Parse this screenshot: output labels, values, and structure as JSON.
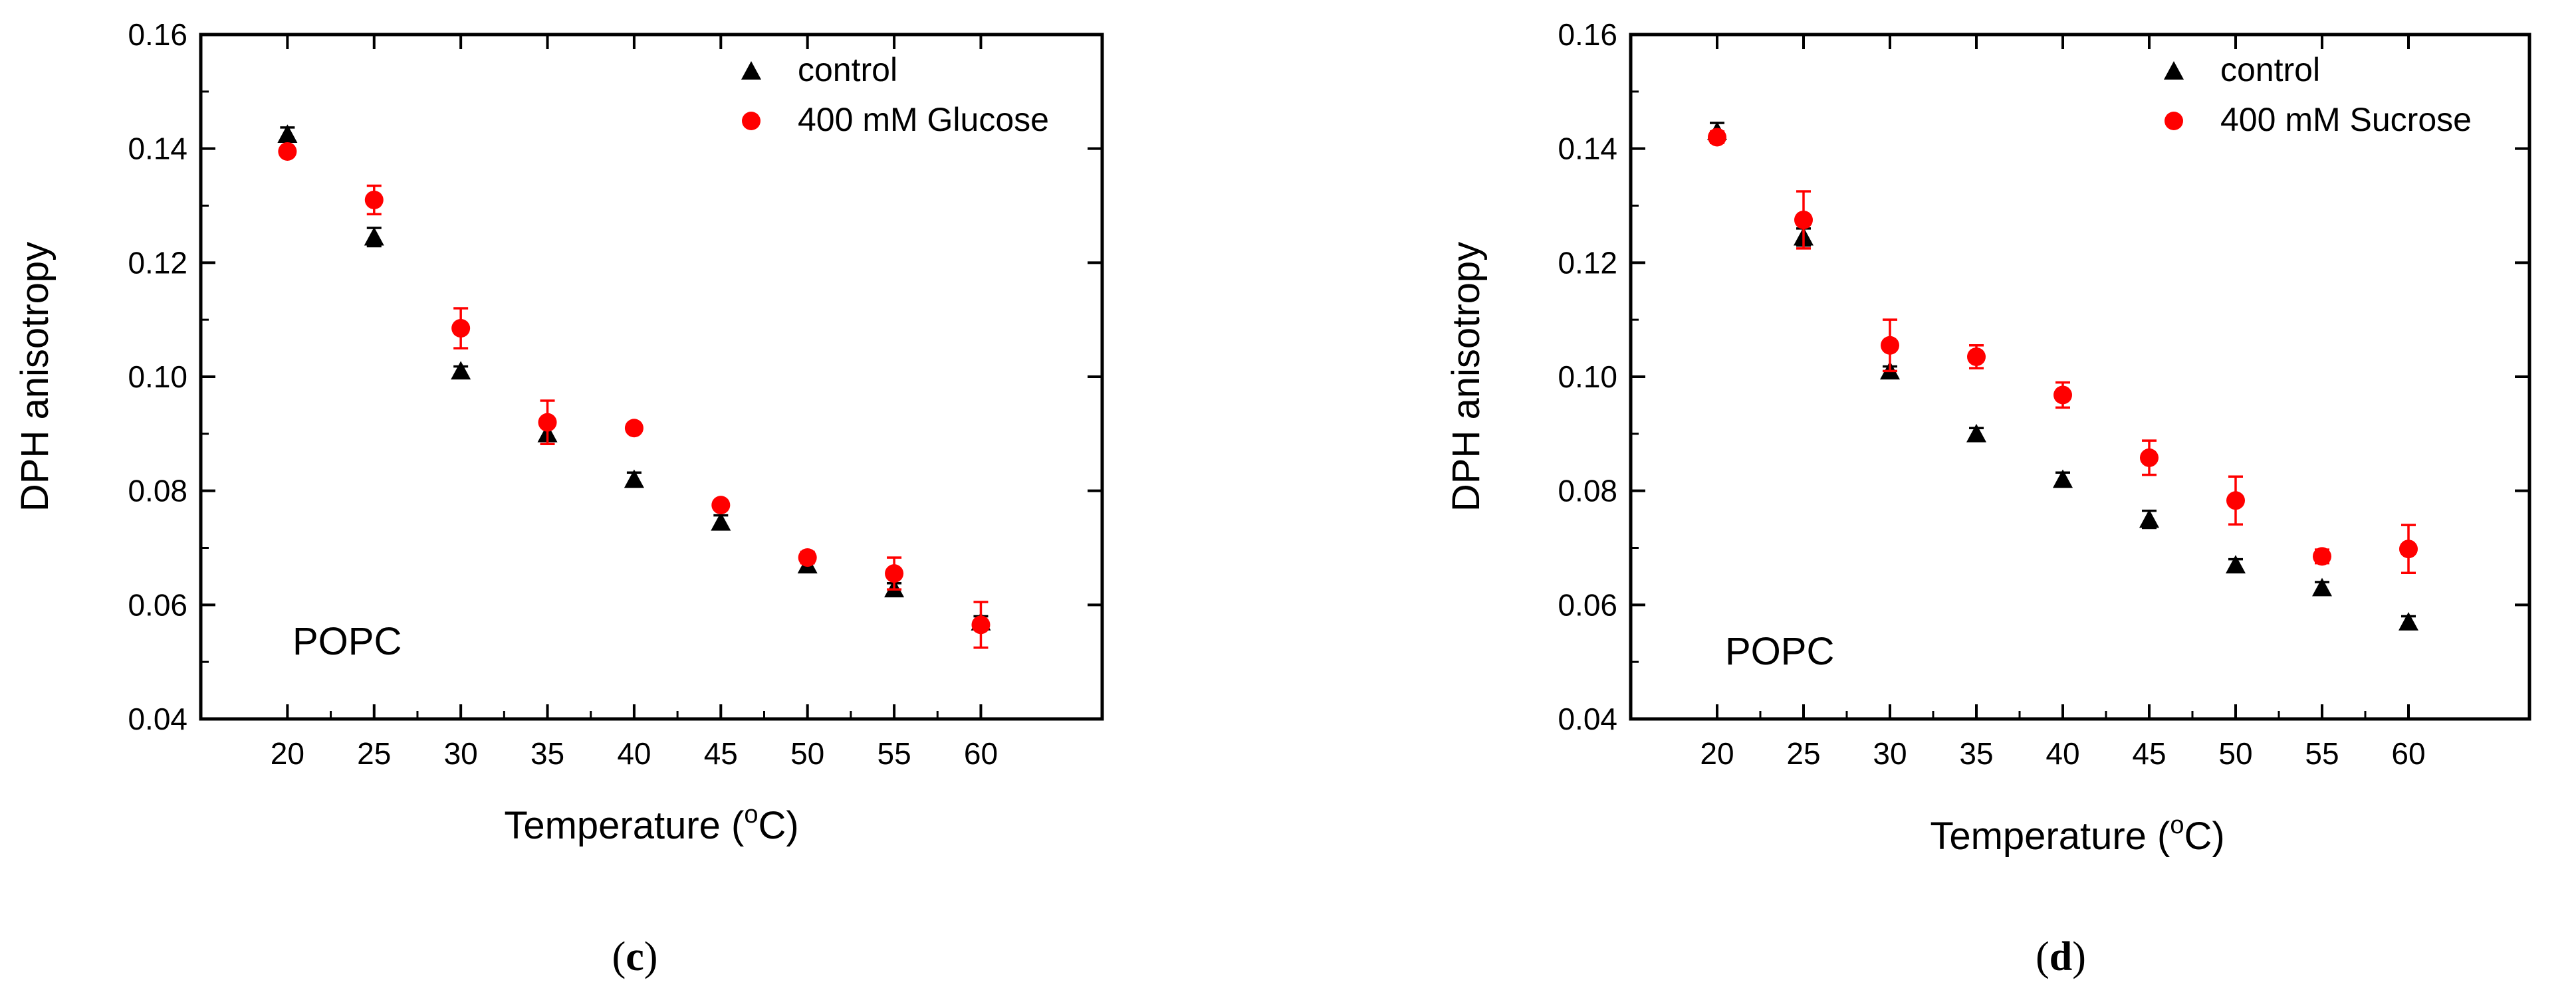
{
  "chart_data": [
    {
      "type": "scatter",
      "panel": "(c)",
      "panel_letter": "c",
      "annotation": "POPC",
      "xlabel": "Temperature (",
      "xlabel_sup": "o",
      "xlabel_unit": "C)",
      "ylabel": "DPH anisotropy",
      "x_ticks": [
        20,
        25,
        30,
        35,
        40,
        45,
        50,
        55,
        60
      ],
      "y_ticks": [
        "0.04",
        "0.06",
        "0.08",
        "0.10",
        "0.12",
        "0.14",
        "0.16"
      ],
      "xlim": [
        15,
        67
      ],
      "ylim": [
        0.04,
        0.16
      ],
      "legend_position": "top-right",
      "series": [
        {
          "name": "control",
          "marker": "triangle",
          "color": "#000000",
          "x": [
            20,
            25,
            30,
            35,
            40,
            45,
            50,
            55,
            60
          ],
          "y": [
            0.1425,
            0.1245,
            0.101,
            0.09,
            0.082,
            0.0745,
            0.067,
            0.0628,
            0.057
          ],
          "err": [
            0.0012,
            0.0016,
            0.0008,
            0.0012,
            0.0012,
            0.0012,
            0.001,
            0.001,
            0.001
          ]
        },
        {
          "name": "400 mM Glucose",
          "marker": "circle",
          "color": "#ff0000",
          "x": [
            20,
            25,
            30,
            35,
            40,
            45,
            50,
            55,
            60
          ],
          "y": [
            0.1395,
            0.131,
            0.1085,
            0.092,
            0.091,
            0.0775,
            0.0683,
            0.0655,
            0.0565
          ],
          "err": [
            0.0005,
            0.0025,
            0.0035,
            0.0038,
            0.0005,
            0.0005,
            0.001,
            0.0028,
            0.004
          ]
        }
      ]
    },
    {
      "type": "scatter",
      "panel": "(d)",
      "panel_letter": "d",
      "annotation": "POPC",
      "xlabel": "Temperature (",
      "xlabel_sup": "o",
      "xlabel_unit": "C)",
      "ylabel": "DPH anisotropy",
      "x_ticks": [
        20,
        25,
        30,
        35,
        40,
        45,
        50,
        55,
        60
      ],
      "y_ticks": [
        "0.04",
        "0.06",
        "0.08",
        "0.10",
        "0.12",
        "0.14",
        "0.16"
      ],
      "xlim": [
        15,
        67
      ],
      "ylim": [
        0.04,
        0.16
      ],
      "legend_position": "top-right",
      "series": [
        {
          "name": "control",
          "marker": "triangle",
          "color": "#000000",
          "x": [
            20,
            25,
            30,
            35,
            40,
            45,
            50,
            55,
            60
          ],
          "y": [
            0.143,
            0.1245,
            0.101,
            0.09,
            0.082,
            0.075,
            0.067,
            0.063,
            0.057
          ],
          "err": [
            0.0015,
            0.0015,
            0.0008,
            0.001,
            0.0012,
            0.0015,
            0.001,
            0.001,
            0.001
          ]
        },
        {
          "name": "400 mM Sucrose",
          "marker": "circle",
          "color": "#ff0000",
          "x": [
            20,
            25,
            30,
            35,
            40,
            45,
            50,
            55,
            60
          ],
          "y": [
            0.142,
            0.1275,
            0.1055,
            0.1035,
            0.0968,
            0.0858,
            0.0783,
            0.0685,
            0.0698
          ],
          "err": [
            0.001,
            0.005,
            0.0045,
            0.002,
            0.0022,
            0.003,
            0.0042,
            0.0012,
            0.0042
          ]
        }
      ]
    }
  ]
}
